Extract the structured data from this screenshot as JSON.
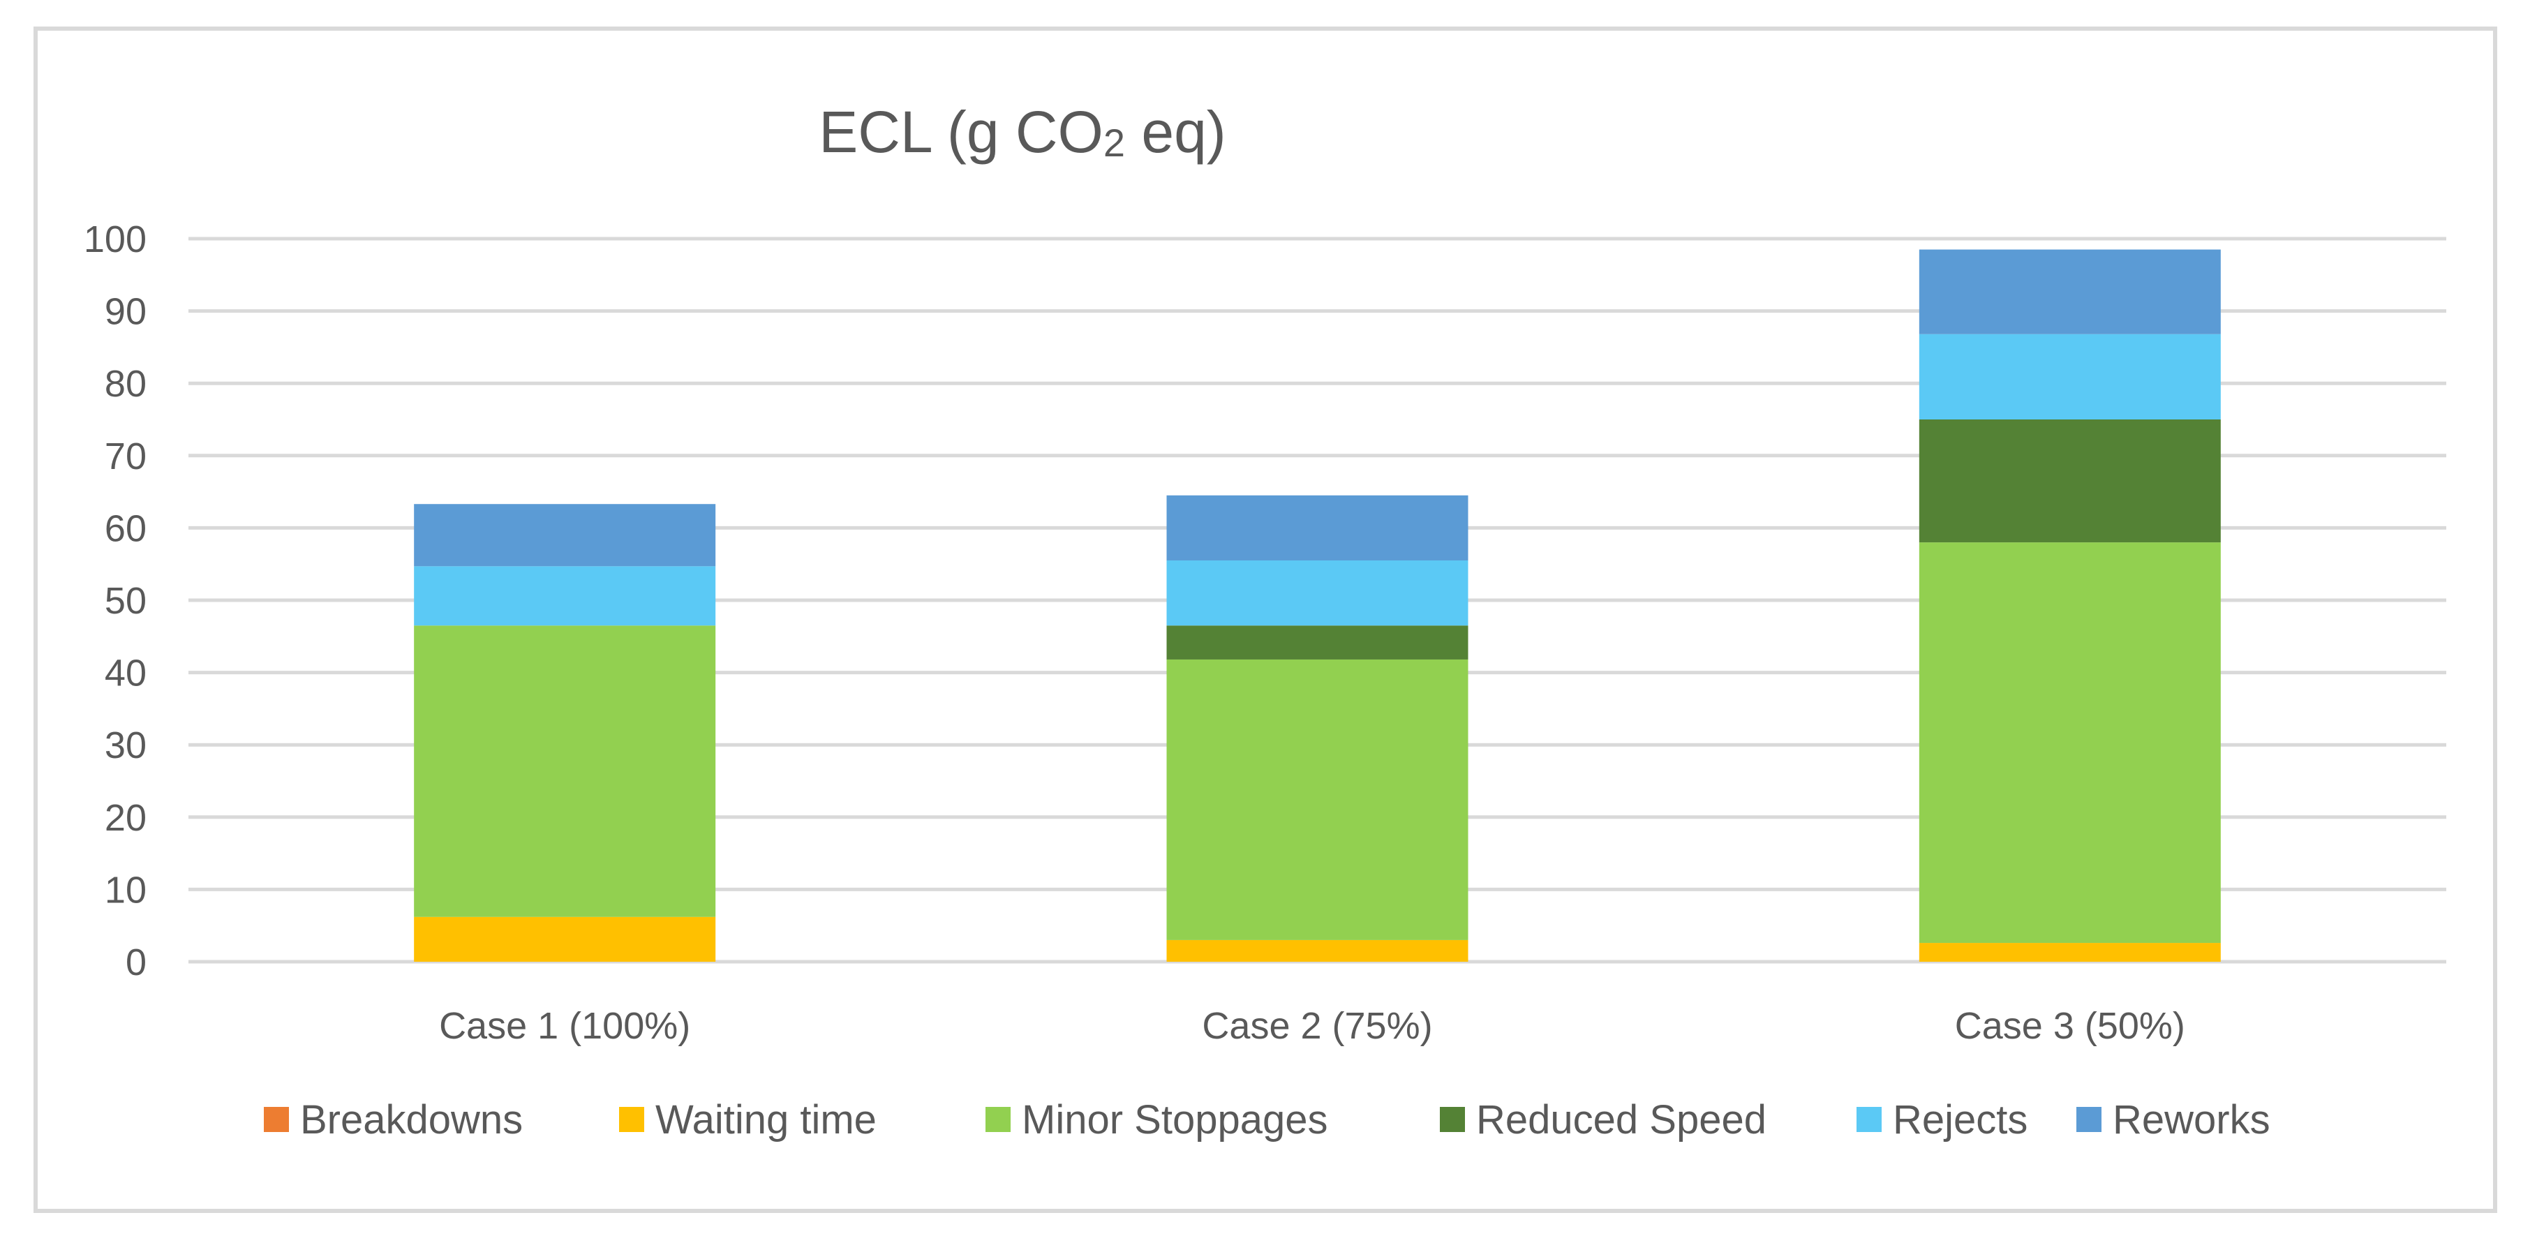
{
  "chart_data": {
    "type": "bar",
    "stacked": true,
    "title": "ECL (g CO2 eq)",
    "title_parts": {
      "main": "ECL (g CO",
      "subscript": "2",
      "tail": " eq)"
    },
    "categories": [
      "Case 1 (100%)",
      "Case 2 (75%)",
      "Case 3 (50%)"
    ],
    "xlabel": "",
    "ylabel": "",
    "ylim": [
      0,
      100
    ],
    "yticks": [
      0,
      10,
      20,
      30,
      40,
      50,
      60,
      70,
      80,
      90,
      100
    ],
    "grid": true,
    "legend_position": "bottom",
    "series": [
      {
        "name": "Breakdowns",
        "color": "#ED7D31",
        "values": [
          0,
          0,
          0
        ]
      },
      {
        "name": "Waiting time",
        "color": "#FFC000",
        "values": [
          6.2,
          3.0,
          2.6
        ]
      },
      {
        "name": "Minor Stoppages",
        "color": "#92D050",
        "values": [
          40.3,
          38.8,
          55.4
        ]
      },
      {
        "name": "Reduced Speed",
        "color": "#548235",
        "values": [
          0,
          4.7,
          17.0
        ]
      },
      {
        "name": "Rejects",
        "color": "#5BC9F5",
        "values": [
          8.2,
          9.0,
          11.8
        ]
      },
      {
        "name": "Reworks",
        "color": "#5B9BD5",
        "values": [
          8.6,
          9.0,
          11.7
        ]
      }
    ]
  }
}
